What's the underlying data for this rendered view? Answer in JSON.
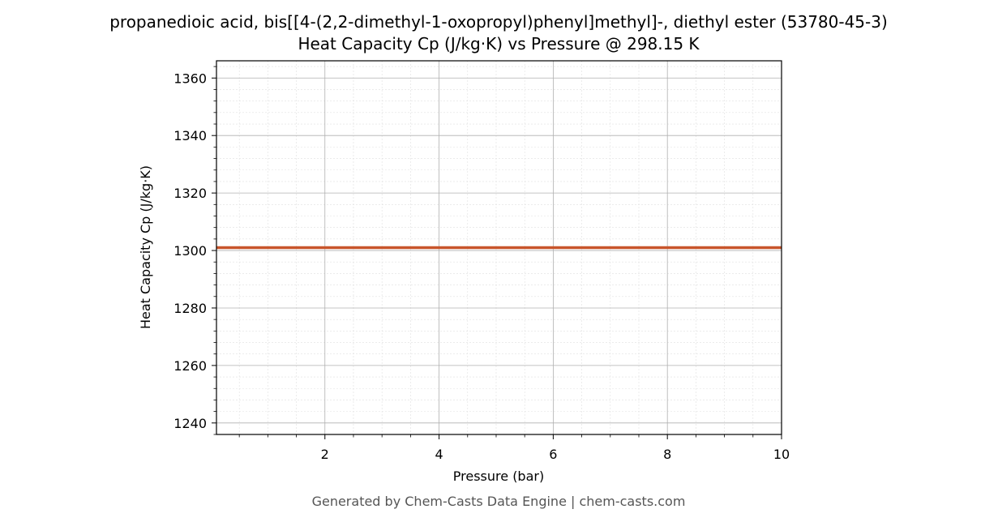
{
  "chart_data": {
    "type": "line",
    "title": "propanedioic acid, bis[[4-(2,2-dimethyl-1-oxopropyl)phenyl]methyl]-, diethyl ester (53780-45-3)",
    "subtitle": "Heat Capacity Cp (J/kg·K) vs Pressure @ 298.15 K",
    "xlabel": "Pressure (bar)",
    "ylabel": "Heat Capacity Cp (J/kg·K)",
    "xlim": [
      0.1,
      10
    ],
    "ylim": [
      1236,
      1366
    ],
    "x_ticks": [
      2,
      4,
      6,
      8,
      10
    ],
    "x_tick_labels": [
      "2",
      "4",
      "6",
      "8",
      "10"
    ],
    "y_ticks": [
      1240,
      1260,
      1280,
      1300,
      1320,
      1340,
      1360
    ],
    "y_tick_labels": [
      "1240",
      "1260",
      "1280",
      "1300",
      "1320",
      "1340",
      "1360"
    ],
    "grid": true,
    "series": [
      {
        "color": "#c8552b",
        "x": [
          0.1,
          10
        ],
        "y": [
          1301,
          1301
        ]
      }
    ]
  },
  "footer": "Generated by Chem-Casts Data Engine | chem-casts.com"
}
